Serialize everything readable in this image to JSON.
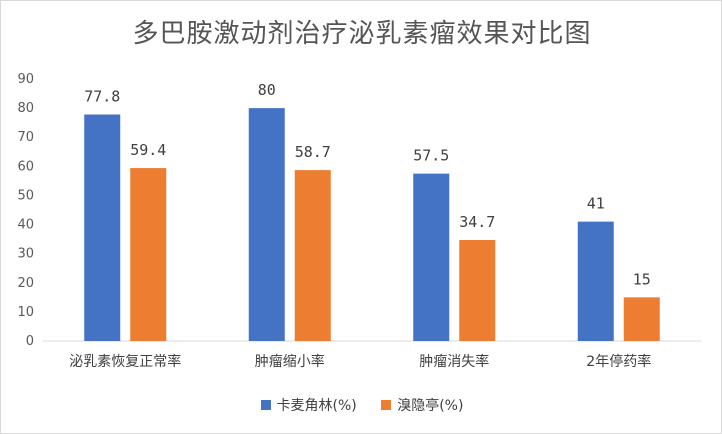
{
  "chart_data": {
    "type": "bar",
    "title": "多巴胺激动剂治疗泌乳素瘤效果对比图",
    "categories": [
      "泌乳素恢复正常率",
      "肿瘤缩小率",
      "肿瘤消失率",
      "2年停药率"
    ],
    "series": [
      {
        "name": "卡麦角林(%)",
        "values": [
          77.8,
          80,
          57.5,
          41
        ],
        "labels": [
          "77.8",
          "80",
          "57.5",
          "41"
        ],
        "color": "#4472C4"
      },
      {
        "name": "溴隐亭(%)",
        "values": [
          59.4,
          58.7,
          34.7,
          15
        ],
        "labels": [
          "59.4",
          "58.7",
          "34.7",
          "15"
        ],
        "color": "#ED7D31"
      }
    ],
    "ylim": [
      0,
      90
    ],
    "yticks": [
      0,
      10,
      20,
      30,
      40,
      50,
      60,
      70,
      80,
      90
    ],
    "grid": false,
    "legend": "bottom",
    "xlabel": "",
    "ylabel": ""
  }
}
